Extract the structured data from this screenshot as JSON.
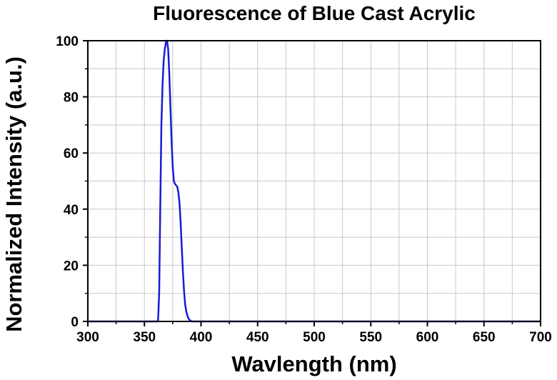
{
  "chart_data": {
    "type": "line",
    "title": "Fluorescence of Blue Cast Acrylic",
    "xlabel": "Wavlength (nm)",
    "ylabel": "Normalized Intensity (a.u.)",
    "xlim": [
      300,
      700
    ],
    "ylim": [
      0,
      100
    ],
    "x_ticks": [
      300,
      350,
      400,
      450,
      500,
      550,
      600,
      650,
      700
    ],
    "y_ticks": [
      0,
      20,
      40,
      60,
      80,
      100
    ],
    "grid": true,
    "legend": "none",
    "line_color": "#1a1ad6",
    "grid_color": "#c8c8c8",
    "series": [
      {
        "x": [
          300,
          355,
          360,
          362,
          363,
          364,
          365,
          366,
          367,
          368,
          369,
          370,
          371,
          372,
          373,
          374,
          375,
          376,
          377,
          378,
          379,
          380,
          381,
          382,
          383,
          384,
          385,
          386,
          387,
          388,
          389,
          390,
          391,
          392,
          395,
          400,
          450,
          500,
          550,
          600,
          650,
          700
        ],
        "y": [
          0,
          0,
          0,
          0,
          10,
          40,
          70,
          84,
          93,
          97,
          99.5,
          100,
          97,
          88,
          76,
          64,
          55,
          50,
          49,
          48.5,
          48,
          46,
          42,
          35,
          26,
          18,
          11,
          6,
          3.5,
          2,
          1,
          0.5,
          0.2,
          0,
          0,
          0,
          0,
          0,
          0,
          0,
          0,
          0
        ]
      }
    ]
  }
}
